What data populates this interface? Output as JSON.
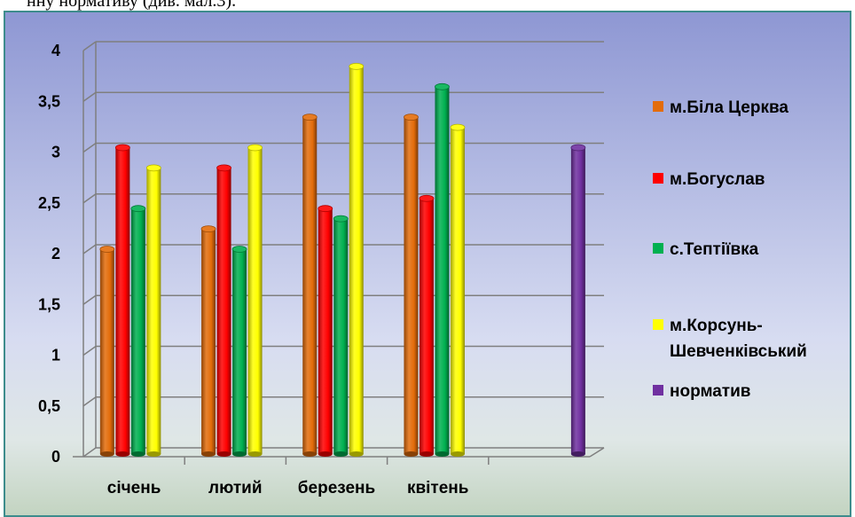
{
  "page": {
    "top_text": "нну нормативу (див. мал.3)."
  },
  "chart_data": {
    "type": "bar",
    "categories": [
      "січень",
      "лютий",
      "березень",
      "квітень",
      ""
    ],
    "series": [
      {
        "name": "м.Біла Церква",
        "color": "#e36c0a",
        "values": [
          2.0,
          2.2,
          3.3,
          3.3,
          null
        ]
      },
      {
        "name": "м.Богуслав",
        "color": "#ff0000",
        "values": [
          3.0,
          2.8,
          2.4,
          2.5,
          null
        ]
      },
      {
        "name": "с.Тептіївка",
        "color": "#00b050",
        "values": [
          2.4,
          2.0,
          2.3,
          3.6,
          null
        ]
      },
      {
        "name": "м.Корсунь-Шевченківський",
        "legend_lines": [
          "м.Корсунь-",
          "Шевченківський"
        ],
        "color": "#ffff00",
        "values": [
          2.8,
          3.0,
          3.8,
          3.2,
          null
        ]
      },
      {
        "name": "норматив",
        "color": "#7030a0",
        "values": [
          null,
          null,
          null,
          null,
          3.0
        ]
      }
    ],
    "ylim": [
      0,
      4
    ],
    "yticks": [
      "0",
      "0,5",
      "1",
      "1,5",
      "2",
      "2,5",
      "3",
      "3,5",
      "4"
    ],
    "grid": true,
    "legend_position": "right",
    "title": "",
    "xlabel": "",
    "ylabel": ""
  }
}
